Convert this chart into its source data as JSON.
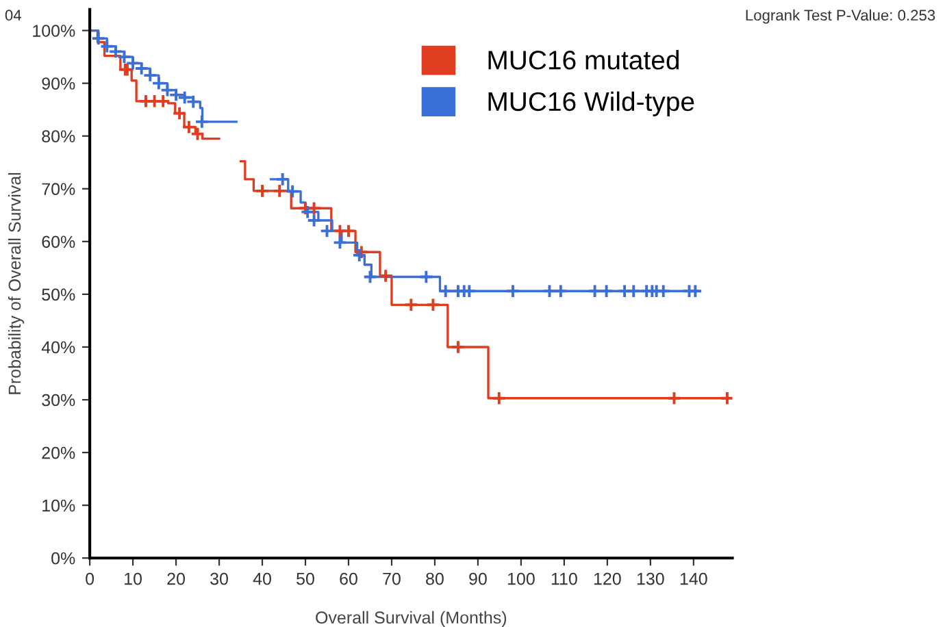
{
  "chart_data": {
    "type": "step",
    "xlabel": "Overall Survival (Months)",
    "ylabel": "Probability of Overall Survival",
    "annotations": [
      "Logrank Test P-Value: 0.253",
      "04"
    ],
    "xlim": [
      0,
      149
    ],
    "ylim": [
      0,
      104
    ],
    "xticks": [
      0,
      10,
      20,
      30,
      40,
      50,
      60,
      70,
      80,
      90,
      100,
      110,
      120,
      130,
      140
    ],
    "yticks": [
      {
        "value": 0,
        "label": "0%"
      },
      {
        "value": 10,
        "label": "10%"
      },
      {
        "value": 20,
        "label": "20%"
      },
      {
        "value": 30,
        "label": "30%"
      },
      {
        "value": 40,
        "label": "40%"
      },
      {
        "value": 50,
        "label": "50%"
      },
      {
        "value": 60,
        "label": "60%"
      },
      {
        "value": 70,
        "label": "70%"
      },
      {
        "value": 80,
        "label": "80%"
      },
      {
        "value": 90,
        "label": "90%"
      },
      {
        "value": 100,
        "label": "100%"
      }
    ],
    "grid": false,
    "legend": "top right",
    "line_style": "solid",
    "series": [
      {
        "name": "MUC16 mutated",
        "color": "#e03c1f",
        "type": "step",
        "x": [
          0,
          1.8,
          3.4,
          7.1,
          9.7,
          10.8,
          18.2,
          19.8,
          21.9,
          24.5,
          26.1,
          30,
          35,
          36,
          38,
          46.7,
          56,
          61.6,
          67.3,
          70,
          83,
          92.4,
          148
        ],
        "values": [
          100,
          97.8,
          95.2,
          92.6,
          90.5,
          86.6,
          86.2,
          84.3,
          81.7,
          80.4,
          79.5,
          null,
          75.2,
          71.8,
          69.6,
          66.3,
          62,
          58,
          53.5,
          48,
          40,
          30.3,
          30.3
        ]
      },
      {
        "name": "MUC16 Wild-type",
        "color": "#3a6fd8",
        "type": "step",
        "x": [
          0,
          2,
          4,
          6,
          8,
          10,
          12,
          14,
          16,
          18,
          20,
          22,
          24,
          25.6,
          26.1,
          34,
          42,
          46,
          48.9,
          50,
          53,
          56.2,
          58.4,
          62,
          63.7,
          65.3,
          81.2,
          141
        ],
        "values": [
          100,
          98.5,
          97,
          96,
          95,
          93.8,
          92.8,
          91.5,
          90,
          88.7,
          87.8,
          87.3,
          86.5,
          85.3,
          82.7,
          null,
          71.8,
          69.5,
          67.4,
          65.6,
          64,
          62,
          59.8,
          57.4,
          55.6,
          53.3,
          50.6,
          50.6
        ]
      },
      {
        "color": "#e03c1f",
        "type": "scatter",
        "marker": "cross",
        "x": [
          8.2,
          8.7,
          13,
          15,
          17,
          20.8,
          23,
          25,
          40,
          44,
          50,
          52,
          58,
          60,
          63,
          68.6,
          74.5,
          79.6,
          85.4,
          94.9,
          135.5,
          147.8
        ],
        "values": [
          92.6,
          92.6,
          86.6,
          86.6,
          86.6,
          84.3,
          81.7,
          80.4,
          69.6,
          69.6,
          66.3,
          66.3,
          62,
          62,
          58,
          53.5,
          48,
          48,
          40,
          30.3,
          30.3,
          30.3
        ]
      },
      {
        "color": "#3a6fd8",
        "type": "scatter",
        "marker": "cross",
        "x": [
          2,
          4,
          6,
          8,
          10,
          12,
          14,
          16,
          18,
          20,
          22,
          24,
          26,
          44.7,
          47,
          50.5,
          52,
          55,
          58,
          62.5,
          65,
          78,
          82.5,
          85.4,
          86.8,
          88,
          98.1,
          106.6,
          109.2,
          117.1,
          119.8,
          124,
          126.1,
          129.1,
          130.4,
          131.4,
          133,
          139,
          140.4
        ],
        "values": [
          98.5,
          97,
          96,
          95,
          93.8,
          92.8,
          91.5,
          90,
          88.7,
          87.8,
          87.3,
          86.5,
          82.7,
          71.8,
          69.5,
          65.6,
          64,
          62,
          59.8,
          57.4,
          53.3,
          53.3,
          50.6,
          50.6,
          50.6,
          50.6,
          50.6,
          50.6,
          50.6,
          50.6,
          50.6,
          50.6,
          50.6,
          50.6,
          50.6,
          50.6,
          50.6,
          50.6,
          50.6
        ]
      }
    ]
  }
}
